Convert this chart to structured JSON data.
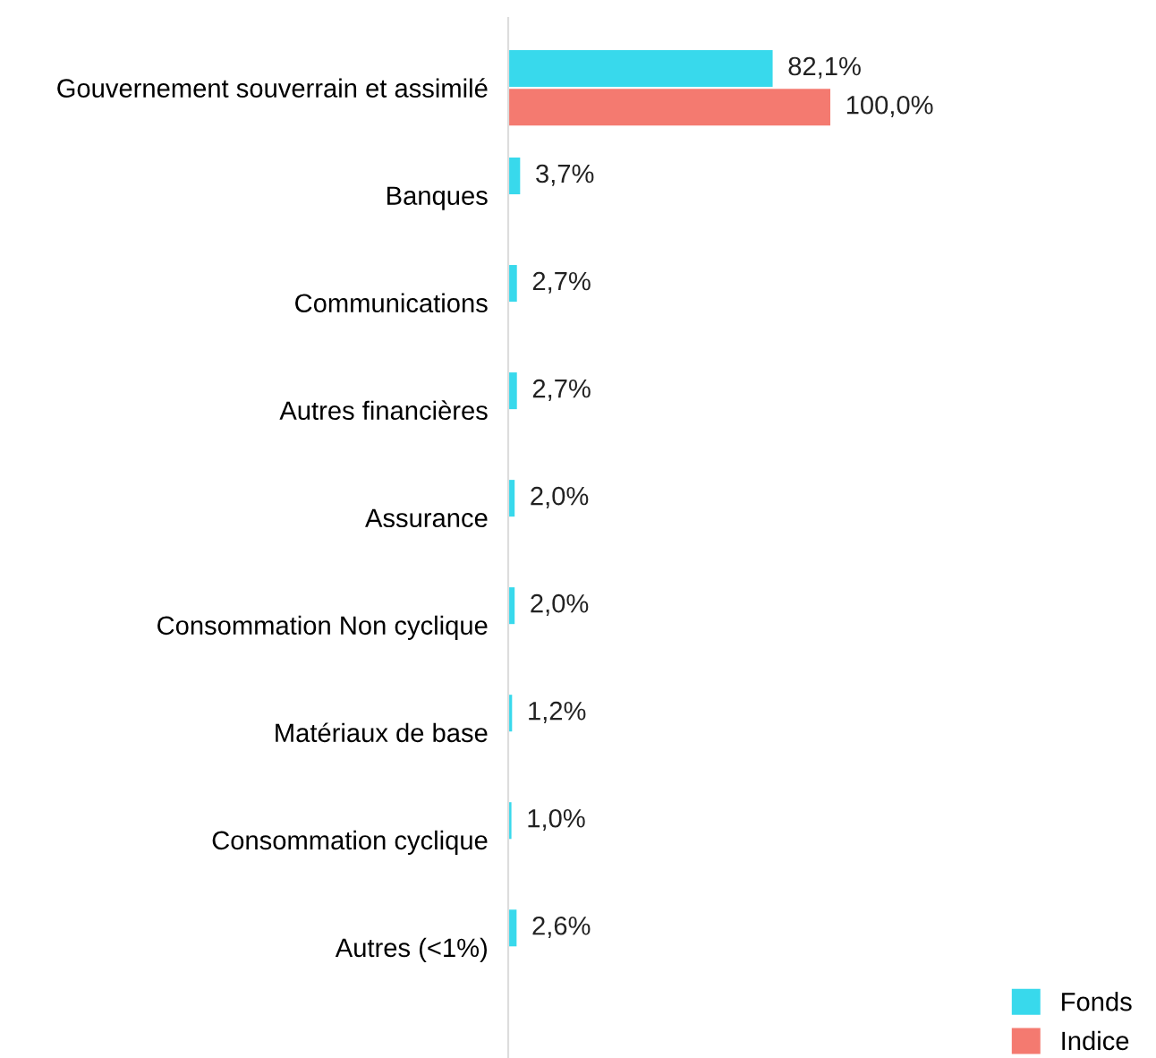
{
  "chart_data": {
    "type": "bar",
    "orientation": "horizontal",
    "categories": [
      "Gouvernement souverrain et assimilé",
      "Banques",
      "Communications",
      "Autres financières",
      "Assurance",
      "Consommation Non cyclique",
      "Matériaux de base",
      "Consommation cyclique",
      "Autres (<1%)"
    ],
    "series": [
      {
        "name": "Fonds",
        "color": "#38d9ec",
        "values": [
          82.1,
          3.7,
          2.7,
          2.7,
          2.0,
          2.0,
          1.2,
          1.0,
          2.6
        ],
        "value_labels": [
          "82,1%",
          "3,7%",
          "2,7%",
          "2,7%",
          "2,0%",
          "2,0%",
          "1,2%",
          "1,0%",
          "2,6%"
        ]
      },
      {
        "name": "Indice",
        "color": "#f47a70",
        "values": [
          100.0,
          null,
          null,
          null,
          null,
          null,
          null,
          null,
          null
        ],
        "value_labels": [
          "100,0%",
          null,
          null,
          null,
          null,
          null,
          null,
          null,
          null
        ]
      }
    ],
    "tick_labels": "y",
    "grid": false,
    "legend": "bottom right"
  }
}
